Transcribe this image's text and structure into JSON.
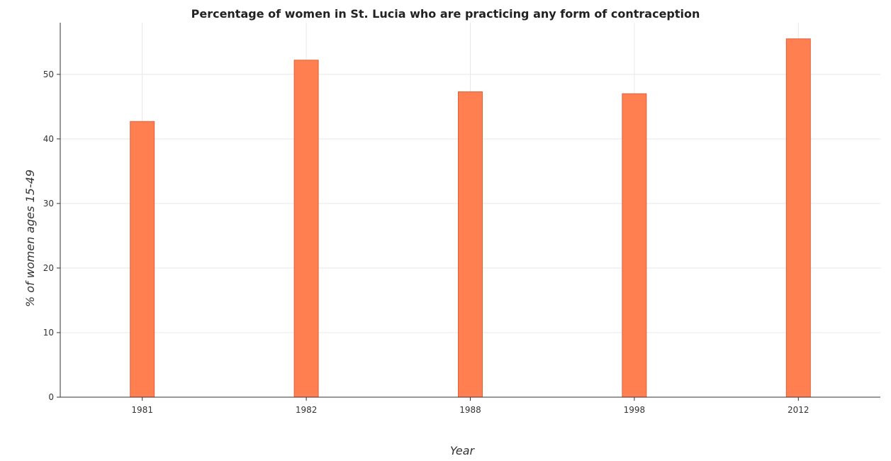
{
  "chart_data": {
    "type": "bar",
    "title": "Percentage of women in St. Lucia who are practicing any form of contraception",
    "xlabel": "Year",
    "ylabel": "% of women ages 15-49",
    "categories": [
      "1981",
      "1982",
      "1988",
      "1998",
      "2012"
    ],
    "values": [
      42.7,
      52.2,
      47.3,
      47.0,
      55.5
    ],
    "ylim": [
      0,
      58
    ],
    "yticks": [
      0,
      10,
      20,
      30,
      40,
      50
    ],
    "grid": true,
    "bar_color": "#ff7f50",
    "bar_edge_color": "#e0603a"
  }
}
